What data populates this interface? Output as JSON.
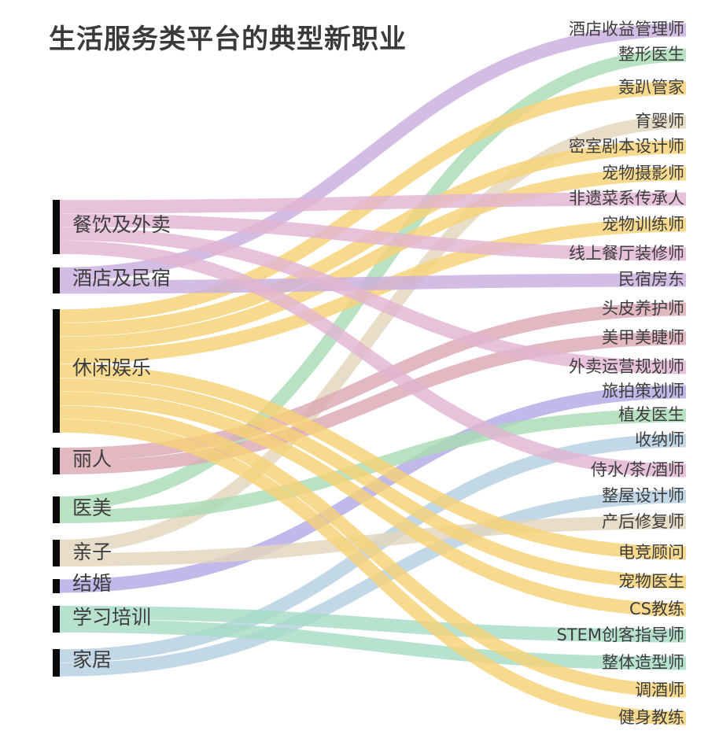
{
  "title": "生活服务类平台的典型新职业",
  "colors": {
    "purple": "#caaede",
    "green": "#a8dcb4",
    "yellow": "#f6d276",
    "beige": "#e3d5bd",
    "pink": "#e2b4d2",
    "lavender": "#b3aae5",
    "blue": "#b6cfe0",
    "teal": "#a6dcc4",
    "rose": "#dcaab4"
  },
  "sources": [
    {
      "label": "餐饮及外卖"
    },
    {
      "label": "酒店及民宿"
    },
    {
      "label": "休闲娱乐"
    },
    {
      "label": "丽人"
    },
    {
      "label": "医美"
    },
    {
      "label": "亲子"
    },
    {
      "label": "结婚"
    },
    {
      "label": "学习培训"
    },
    {
      "label": "家居"
    }
  ],
  "targets": [
    {
      "label": "酒店收益管理师"
    },
    {
      "label": "整形医生"
    },
    {
      "label": "轰趴管家"
    },
    {
      "label": "育婴师"
    },
    {
      "label": "密室剧本设计师"
    },
    {
      "label": "宠物摄影师"
    },
    {
      "label": "非遗菜系传承人"
    },
    {
      "label": "宠物训练师"
    },
    {
      "label": "线上餐厅装修师"
    },
    {
      "label": "民宿房东"
    },
    {
      "label": "头皮养护师"
    },
    {
      "label": "美甲美睫师"
    },
    {
      "label": "外卖运营规划师"
    },
    {
      "label": "旅拍策划师"
    },
    {
      "label": "植发医生"
    },
    {
      "label": "收纳师"
    },
    {
      "label": "侍水/茶/酒师"
    },
    {
      "label": "整屋设计师"
    },
    {
      "label": "产后修复师"
    },
    {
      "label": "电竞顾问"
    },
    {
      "label": "宠物医生"
    },
    {
      "label": "CS教练"
    },
    {
      "label": "STEM创客指导师"
    },
    {
      "label": "整体造型师"
    },
    {
      "label": "调酒师"
    },
    {
      "label": "健身教练"
    }
  ],
  "links": [
    {
      "source": "酒店及民宿",
      "target": "酒店收益管理师",
      "color": "purple"
    },
    {
      "source": "医美",
      "target": "整形医生",
      "color": "green"
    },
    {
      "source": "休闲娱乐",
      "target": "轰趴管家",
      "color": "yellow"
    },
    {
      "source": "亲子",
      "target": "育婴师",
      "color": "beige"
    },
    {
      "source": "休闲娱乐",
      "target": "密室剧本设计师",
      "color": "yellow"
    },
    {
      "source": "休闲娱乐",
      "target": "宠物摄影师",
      "color": "yellow"
    },
    {
      "source": "餐饮及外卖",
      "target": "非遗菜系传承人",
      "color": "pink"
    },
    {
      "source": "休闲娱乐",
      "target": "宠物训练师",
      "color": "yellow"
    },
    {
      "source": "餐饮及外卖",
      "target": "线上餐厅装修师",
      "color": "pink"
    },
    {
      "source": "酒店及民宿",
      "target": "民宿房东",
      "color": "purple"
    },
    {
      "source": "丽人",
      "target": "头皮养护师",
      "color": "rose"
    },
    {
      "source": "丽人",
      "target": "美甲美睫师",
      "color": "rose"
    },
    {
      "source": "餐饮及外卖",
      "target": "外卖运营规划师",
      "color": "pink"
    },
    {
      "source": "结婚",
      "target": "旅拍策划师",
      "color": "lavender"
    },
    {
      "source": "医美",
      "target": "植发医生",
      "color": "green"
    },
    {
      "source": "家居",
      "target": "收纳师",
      "color": "blue"
    },
    {
      "source": "餐饮及外卖",
      "target": "侍水/茶/酒师",
      "color": "pink"
    },
    {
      "source": "家居",
      "target": "整屋设计师",
      "color": "blue"
    },
    {
      "source": "亲子",
      "target": "产后修复师",
      "color": "beige"
    },
    {
      "source": "休闲娱乐",
      "target": "电竞顾问",
      "color": "yellow"
    },
    {
      "source": "休闲娱乐",
      "target": "宠物医生",
      "color": "yellow"
    },
    {
      "source": "休闲娱乐",
      "target": "CS教练",
      "color": "yellow"
    },
    {
      "source": "学习培训",
      "target": "STEM创客指导师",
      "color": "teal"
    },
    {
      "source": "学习培训",
      "target": "整体造型师",
      "color": "teal"
    },
    {
      "source": "休闲娱乐",
      "target": "调酒师",
      "color": "yellow"
    },
    {
      "source": "休闲娱乐",
      "target": "健身教练",
      "color": "yellow"
    }
  ]
}
